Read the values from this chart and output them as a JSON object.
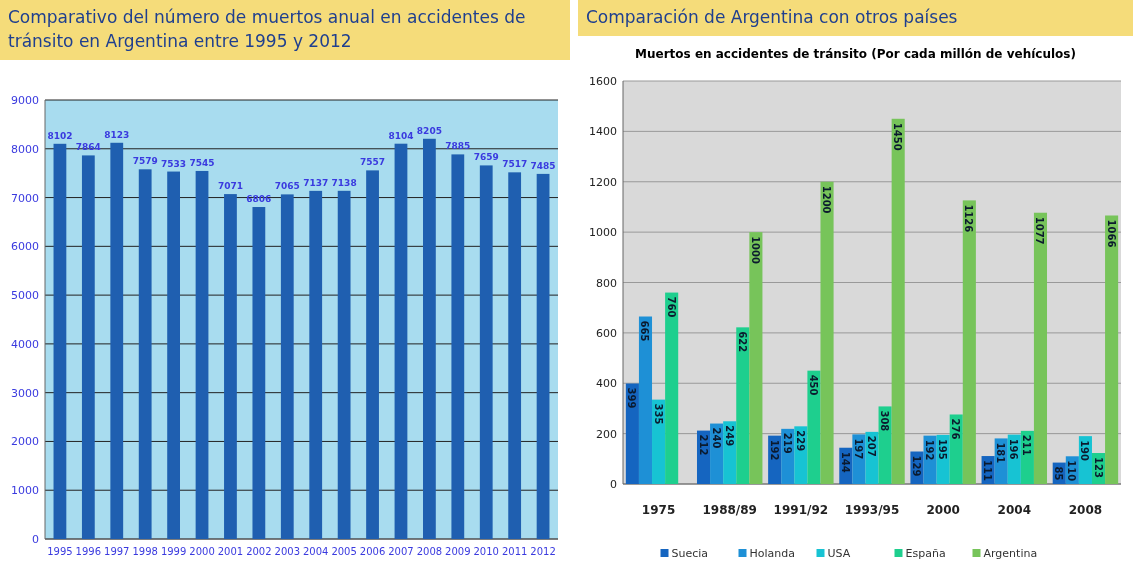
{
  "chart_data": [
    {
      "type": "bar",
      "title": "Comparativo del número de muertos anual en accidentes de tránsito en Argentina entre 1995 y 2012",
      "categories": [
        "1995",
        "1996",
        "1997",
        "1998",
        "1999",
        "2000",
        "2001",
        "2002",
        "2003",
        "2004",
        "2005",
        "2006",
        "2007",
        "2008",
        "2009",
        "2010",
        "2011",
        "2012"
      ],
      "values": [
        8102,
        7864,
        8123,
        7579,
        7533,
        7545,
        7071,
        6806,
        7065,
        7137,
        7138,
        7557,
        8104,
        8205,
        7885,
        7659,
        7517,
        7485
      ],
      "color": "#1f5fb0",
      "ylim": [
        0,
        9000
      ],
      "yticks": [
        0,
        1000,
        2000,
        3000,
        4000,
        5000,
        6000,
        7000,
        8000,
        9000
      ],
      "grid": "y",
      "data_labels": true
    },
    {
      "type": "bar",
      "title": "Comparación de Argentina con otros países",
      "subtitle": "Muertos en accidentes de tránsito (Por cada millón de vehículos)",
      "categories": [
        "1975",
        "1988/89",
        "1991/92",
        "1993/95",
        "2000",
        "2004",
        "2008"
      ],
      "series": [
        {
          "name": "Suecia",
          "color": "#1565c0",
          "values": [
            399,
            212,
            192,
            144,
            129,
            111,
            85
          ]
        },
        {
          "name": "Holanda",
          "color": "#1e90d6",
          "values": [
            665,
            240,
            219,
            197,
            192,
            181,
            110
          ]
        },
        {
          "name": "USA",
          "color": "#17c3d3",
          "values": [
            335,
            249,
            229,
            207,
            195,
            196,
            190
          ]
        },
        {
          "name": "España",
          "color": "#1ecf8e",
          "values": [
            760,
            622,
            450,
            308,
            276,
            211,
            123
          ]
        },
        {
          "name": "Argentina",
          "color": "#77c45a",
          "values": [
            null,
            1000,
            1200,
            1450,
            1126,
            1077,
            1066
          ]
        }
      ],
      "ylim": [
        0,
        1600
      ],
      "yticks": [
        0,
        200,
        400,
        600,
        800,
        1000,
        1200,
        1400,
        1600
      ],
      "grid": "y",
      "legend": "bottom",
      "data_labels": true
    }
  ]
}
